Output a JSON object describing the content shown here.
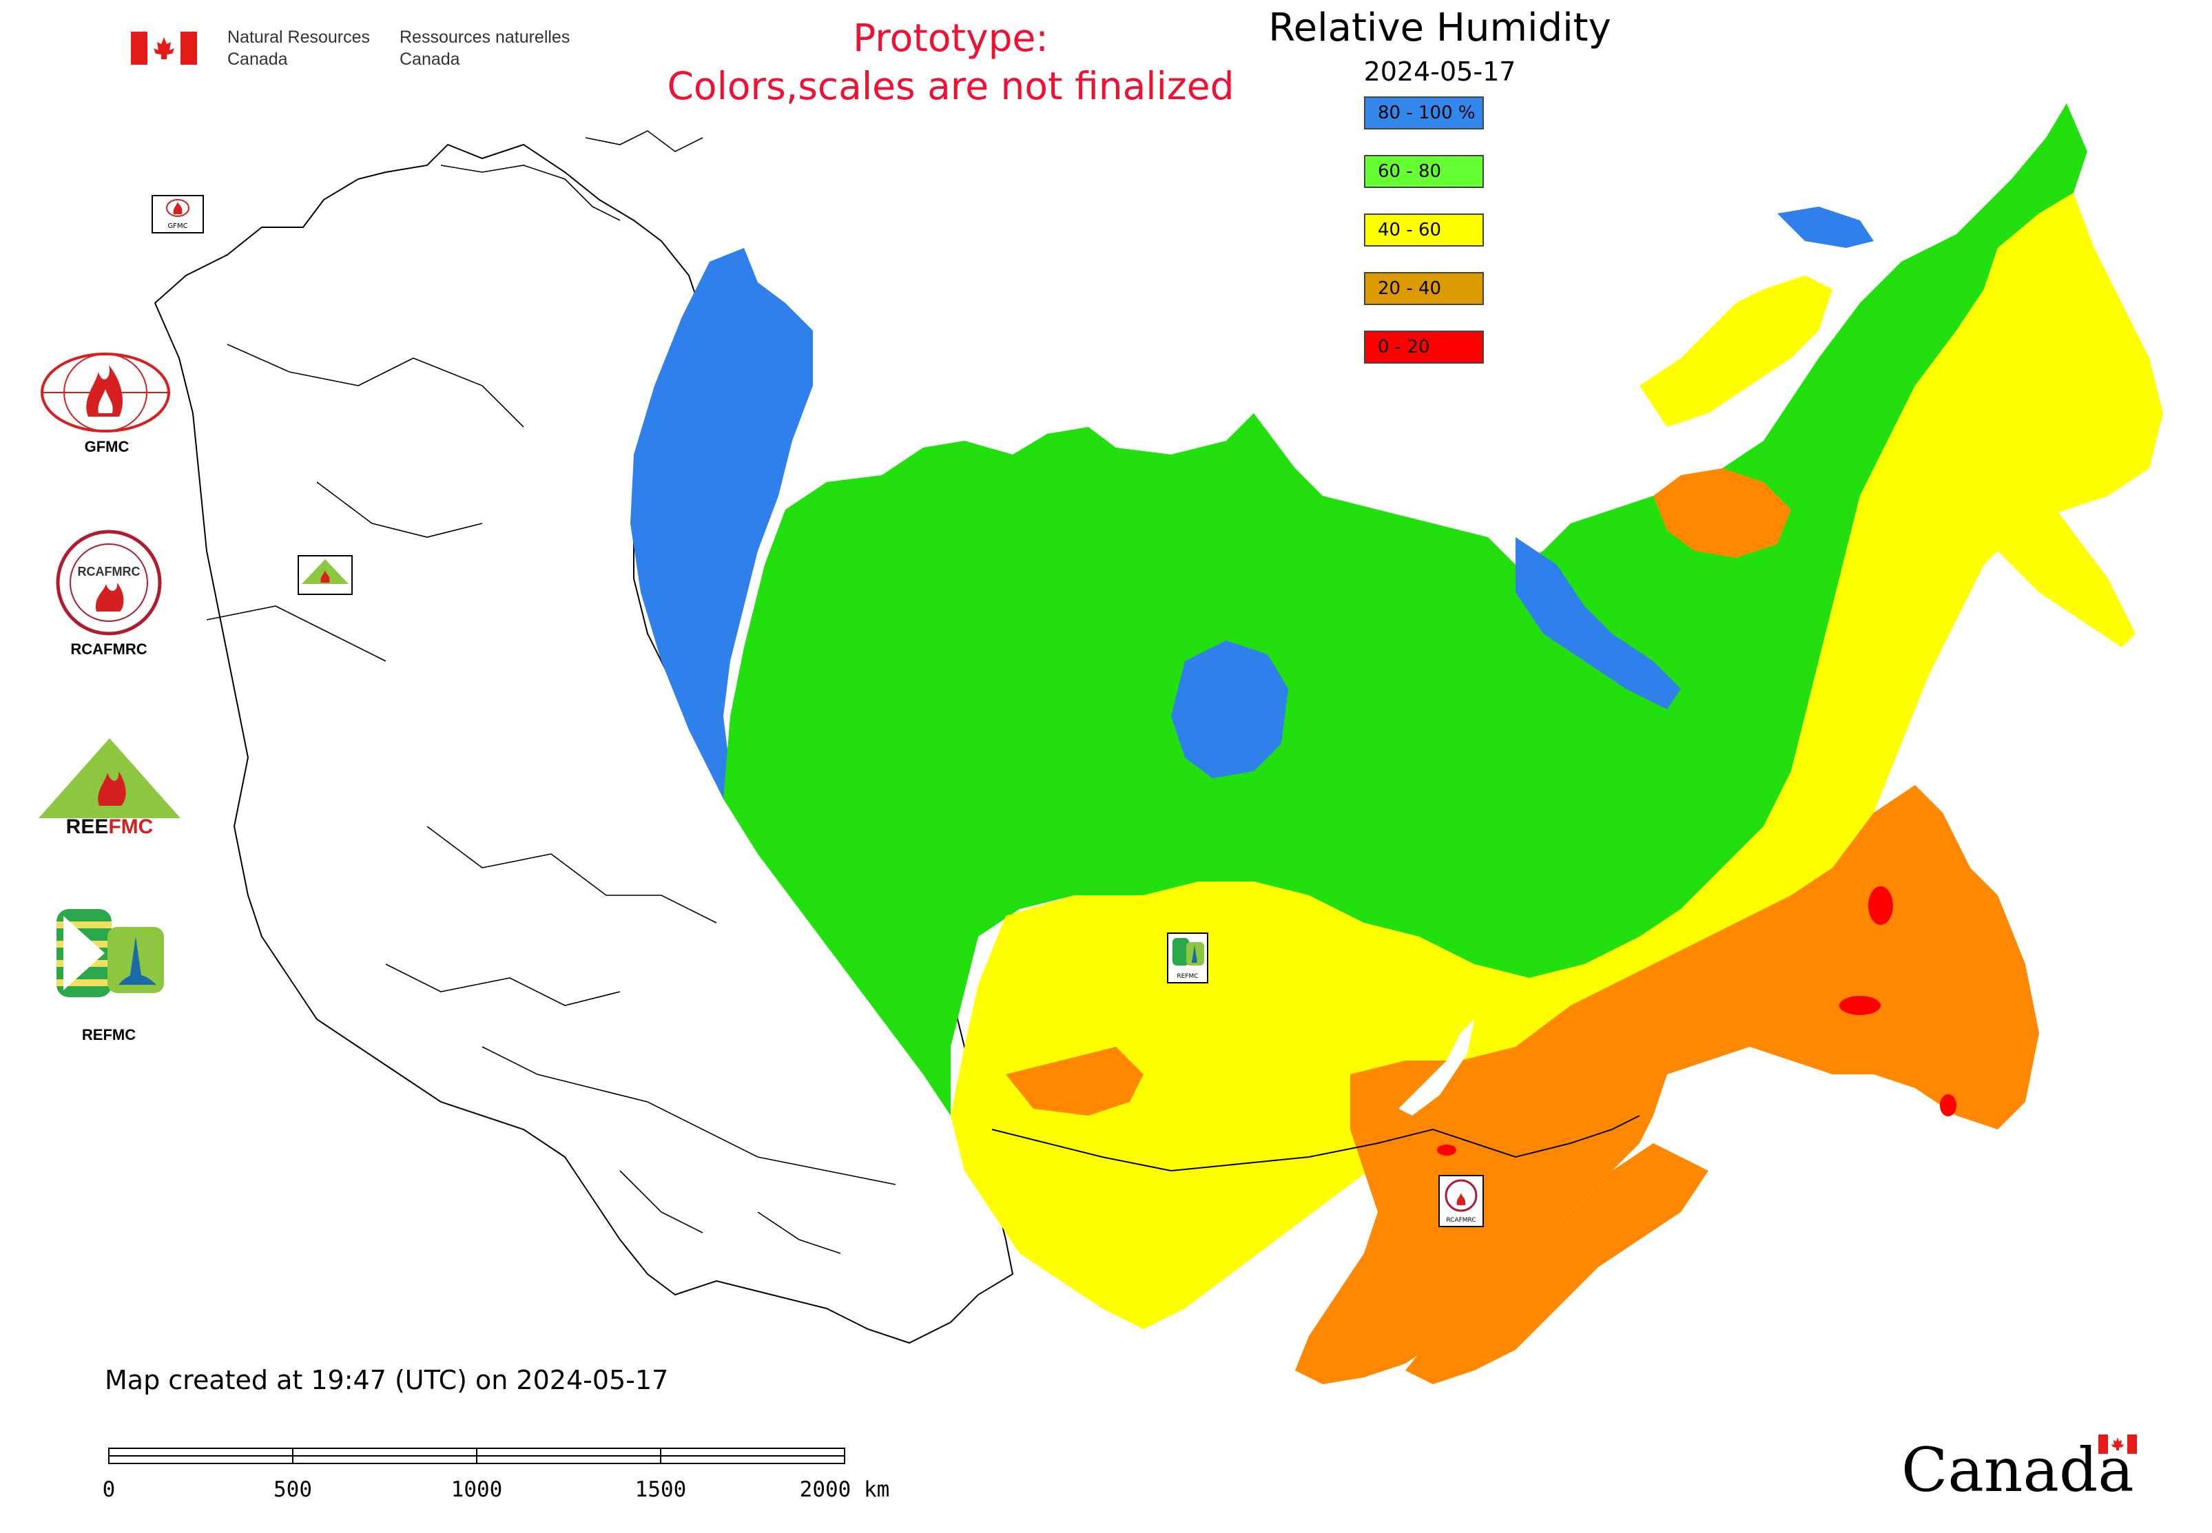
{
  "header": {
    "dept_en_line1": "Natural Resources",
    "dept_en_line2": "Canada",
    "dept_fr_line1": "Ressources naturelles",
    "dept_fr_line2": "Canada"
  },
  "notice": {
    "line1": "Prototype:",
    "line2": "Colors,scales are not finalized",
    "color": "#ee1133"
  },
  "legend": {
    "title": "Relative Humidity",
    "date": "2024-05-17",
    "items": [
      {
        "label": "80 - 100 %",
        "color": "#3388ee"
      },
      {
        "label": "60 - 80",
        "color": "#66ff33"
      },
      {
        "label": "40 - 60",
        "color": "#ffff00"
      },
      {
        "label": "20 - 40",
        "color": "#dd9900"
      },
      {
        "label": "0 - 20",
        "color": "#ff0000"
      }
    ]
  },
  "map_colors": {
    "blue": "#2f80ea",
    "green": "#22e00d",
    "yellow": "#ffff00",
    "orange": "#ff8800",
    "red": "#ff0000",
    "outline": "#000000"
  },
  "centers": [
    {
      "label": "GFMC",
      "icon": "gfmc-logo-icon"
    },
    {
      "label": "RCAFMRC",
      "icon": "rcafmrc-logo-icon"
    },
    {
      "label": "REEFMC",
      "icon": "reefmc-logo-icon"
    },
    {
      "label": "REFMC",
      "icon": "refmc-logo-icon"
    }
  ],
  "map_markers": {
    "gfmc": "GFMC",
    "reefmc": "REEFMC",
    "refmc": "REFMC",
    "rcafmrc": "RCAFMRC"
  },
  "footer": {
    "created": "Map created at 19:47 (UTC) on 2024-05-17",
    "scale_ticks": [
      "0",
      "500",
      "1000",
      "1500",
      "2000 km"
    ],
    "wordmark": "Canada"
  }
}
